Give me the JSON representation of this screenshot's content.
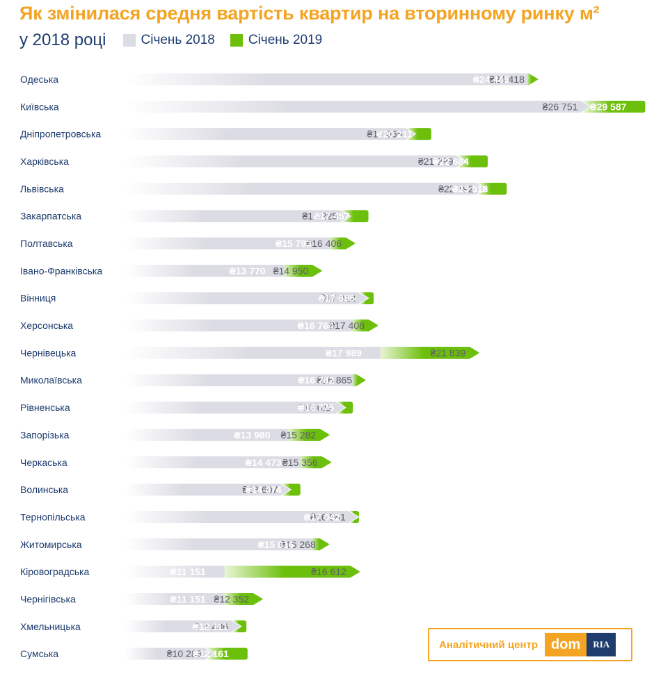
{
  "title": "Як змінилася средня вартість квартир на вторинному ринку м²",
  "subtitle": "у 2018 році",
  "legend": [
    {
      "label": "Січень 2018",
      "color": "#dcdce4"
    },
    {
      "label": "Січень 2019",
      "color": "#6cbf0a"
    }
  ],
  "colors": {
    "bar2018": "#dcdce4",
    "bar2019": "#6cbf0a",
    "label2018": "#5f5f6a",
    "label2019": "#ffffff",
    "category": "#1e3c6d"
  },
  "logo": {
    "caption": "Аналітичний центр",
    "brand": "dom",
    "brand_suffix": "RIA"
  },
  "chart_data": {
    "type": "bar",
    "orientation": "horizontal",
    "categories": [
      "Одеська",
      "Київська",
      "Дніпропетровська",
      "Харківська",
      "Львівська",
      "Закарпатська",
      "Полтавська",
      "Івано-Франківська",
      "Вінниця",
      "Херсонська",
      "Чернівецька",
      "Миколаївська",
      "Рівненська",
      "Запорізька",
      "Черкаська",
      "Волинська",
      "Тернопільська",
      "Житомирська",
      "Кіровоградська",
      "Чернігівська",
      "Хмельницька",
      "Сумська"
    ],
    "series": [
      {
        "name": "Січень 2018",
        "values": [
          24418,
          26751,
          19065,
          21299,
          22192,
          16225,
          16406,
          14950,
          17012,
          17408,
          21839,
          16865,
          16011,
          15282,
          15356,
          13607,
          16581,
          15268,
          16612,
          12352,
          11436,
          10288
        ],
        "labels": [
          "₴24 418",
          "₴26 751",
          "₴19 065",
          "₴21 299",
          "₴22 192",
          "₴16 225",
          "₴16 406",
          "₴14 950",
          "₴17 012",
          "₴17 408",
          "₴21 839",
          "₴16 865",
          "₴16 011",
          "₴15 282",
          "₴15 356",
          "₴13 607",
          "₴16 581",
          "₴15 268",
          "₴16 612",
          "₴12 352",
          "₴11 436",
          "₴10 288"
        ]
      },
      {
        "name": "Січень 2019",
        "values": [
          24445,
          29587,
          20211,
          22684,
          23518,
          17457,
          15793,
          13770,
          17685,
          16764,
          17989,
          16782,
          16775,
          13980,
          14473,
          14474,
          17042,
          15016,
          11151,
          11151,
          12111,
          12161
        ],
        "labels": [
          "₴24 445",
          "₴29 587",
          "₴20 211",
          "₴22 684",
          "₴23 518",
          "₴17 457",
          "₴15 793",
          "₴13 770",
          "₴17 685",
          "₴16 764",
          "₴17 989",
          "₴16 782",
          "₴16 775",
          "₴13 980",
          "₴14 473",
          "₴14 474",
          "₴17 042",
          "₴15 016",
          "₴11 151",
          "₴11 151",
          "₴12 111",
          "₴12 161"
        ]
      }
    ]
  }
}
